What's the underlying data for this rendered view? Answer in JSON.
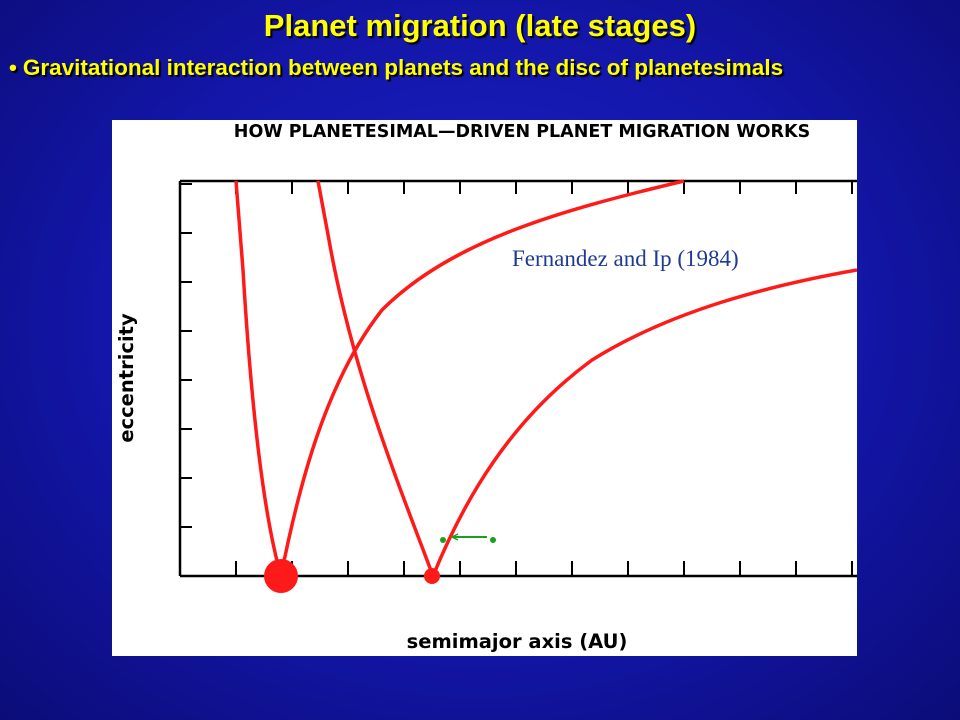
{
  "slide": {
    "title": "Planet migration (late stages)",
    "bullet_symbol": "•",
    "bullet": "Gravitational interaction between planets and the disc of planetesimals"
  },
  "figure": {
    "title": "HOW PLANETESIMAL—DRIVEN PLANET MIGRATION WORKS",
    "xlabel": "semimajor axis (AU)",
    "ylabel": "eccentricity",
    "citation": "Fernandez and Ip (1984)",
    "colors": {
      "curves": "#ff1a1a",
      "migration_arrow": "#1aa01a",
      "citation_text": "#1f3a93",
      "slide_text": "#ffff00",
      "background": "#1316a8"
    },
    "planets": [
      {
        "name": "large-planet",
        "size": "large"
      },
      {
        "name": "small-planet",
        "size": "small"
      }
    ],
    "migration_arrow": {
      "direction": "left"
    }
  }
}
